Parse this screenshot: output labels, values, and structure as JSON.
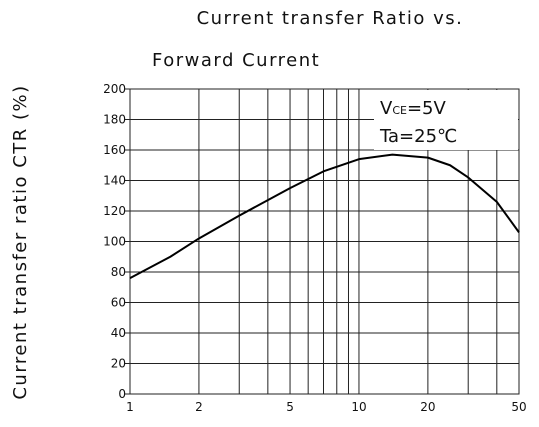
{
  "chart_data": {
    "type": "line",
    "title": [
      "Current transfer Ratio vs.",
      "Forward Current"
    ],
    "ylabel": "Current transfer ratio  CTR  (%)",
    "annotations": [
      {
        "parts": [
          "V",
          "CE",
          "=5V"
        ]
      },
      {
        "parts": [
          "Ta=25℃"
        ]
      }
    ],
    "x": [
      1,
      1.5,
      2,
      3,
      5,
      7,
      10,
      14,
      20,
      25,
      30,
      40,
      50
    ],
    "series": [
      {
        "name": "CTR",
        "color": "#000000",
        "values": [
          76,
          90,
          102,
          117,
          135,
          146,
          154,
          157,
          155,
          150,
          142,
          126,
          106
        ]
      }
    ],
    "log_x": true,
    "xlim": [
      1,
      50
    ],
    "xticks": [
      1,
      2,
      5,
      10,
      20,
      50
    ],
    "xminor": [
      3,
      4,
      6,
      7,
      8,
      9,
      30,
      40
    ],
    "ylim": [
      0,
      200
    ],
    "yticks": [
      0,
      20,
      40,
      60,
      80,
      100,
      120,
      140,
      160,
      180,
      200
    ],
    "grid": true
  }
}
